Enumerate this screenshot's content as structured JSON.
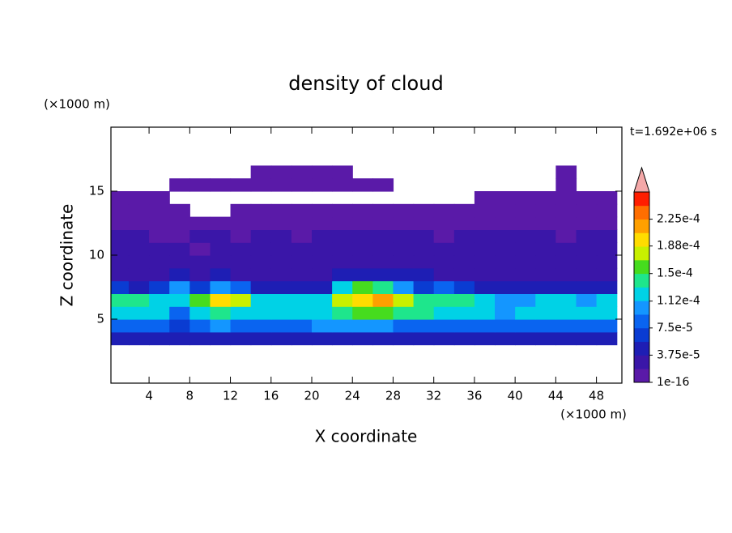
{
  "chart_data": {
    "type": "contour",
    "title": "density of cloud",
    "x_label": "X coordinate",
    "y_label": "Z coordinate",
    "x_unit": "(×1000 m)",
    "y_unit": "(×1000 m)",
    "annotation": "t=1.692e+06 s",
    "xlim": [
      0.25,
      50.5
    ],
    "ylim": [
      0,
      20
    ],
    "xticks": [
      4,
      8,
      12,
      16,
      20,
      24,
      28,
      32,
      36,
      40,
      44,
      48
    ],
    "yticks": [
      5,
      10,
      15
    ],
    "x": [
      1,
      3,
      5,
      7,
      9,
      11,
      13,
      15,
      17,
      19,
      21,
      23,
      25,
      27,
      29,
      31,
      33,
      35,
      37,
      39,
      41,
      43,
      45,
      47,
      49
    ],
    "y": [
      3.5,
      4.5,
      5.5,
      6.5,
      7.5,
      8.5,
      9.5,
      10.5,
      11.5,
      12.5,
      13.5,
      14.5,
      15.5,
      16.5
    ],
    "values": [
      [
        4e-05,
        4e-05,
        4e-05,
        4e-05,
        4e-05,
        4e-05,
        4e-05,
        4e-05,
        4e-05,
        4e-05,
        4e-05,
        4e-05,
        4e-05,
        4e-05,
        4e-05,
        4e-05,
        4e-05,
        4e-05,
        4e-05,
        4e-05,
        4e-05,
        4e-05,
        4e-05,
        4e-05,
        4e-05
      ],
      [
        9e-05,
        9e-05,
        8e-05,
        7e-05,
        9e-05,
        0.0001,
        9e-05,
        9e-05,
        9e-05,
        9e-05,
        0.0001,
        0.0001,
        0.0001,
        0.0001,
        9e-05,
        9e-05,
        9e-05,
        9e-05,
        9e-05,
        8e-05,
        9e-05,
        9e-05,
        9e-05,
        8e-05,
        9e-05
      ],
      [
        0.00013,
        0.00013,
        0.00012,
        8e-05,
        0.00013,
        0.00014,
        0.00013,
        0.00012,
        0.00012,
        0.00013,
        0.00013,
        0.00015,
        0.00016,
        0.00016,
        0.00015,
        0.00014,
        0.00013,
        0.00013,
        0.00012,
        0.00011,
        0.00012,
        0.00013,
        0.00012,
        0.00012,
        0.00013
      ],
      [
        0.00014,
        0.00015,
        0.00013,
        0.00012,
        0.00016,
        0.00019,
        0.00017,
        0.00013,
        0.00013,
        0.00013,
        0.00013,
        0.00018,
        0.0002,
        0.00021,
        0.00018,
        0.00015,
        0.00014,
        0.00015,
        0.00013,
        0.0001,
        0.00011,
        0.00013,
        0.00012,
        0.00011,
        0.00013
      ],
      [
        6e-05,
        5e-05,
        6e-05,
        0.00011,
        6e-05,
        0.00011,
        8e-05,
        5e-05,
        4e-05,
        5e-05,
        5e-05,
        0.00013,
        0.00016,
        0.00015,
        0.00011,
        7e-05,
        8e-05,
        7e-05,
        5e-05,
        4e-05,
        5e-05,
        5e-05,
        4e-05,
        4e-05,
        5e-05
      ],
      [
        3e-05,
        3e-05,
        3e-05,
        4e-05,
        3e-05,
        4e-05,
        3e-05,
        3e-05,
        3e-05,
        3e-05,
        3e-05,
        4e-05,
        5e-05,
        5e-05,
        4e-05,
        4e-05,
        3e-05,
        3e-05,
        3e-05,
        3e-05,
        3e-05,
        3e-05,
        3e-05,
        3e-05,
        3e-05
      ],
      [
        3e-05,
        2e-05,
        3e-05,
        3e-05,
        3e-05,
        3e-05,
        2e-05,
        3e-05,
        3e-05,
        2e-05,
        3e-05,
        3e-05,
        3e-05,
        3e-05,
        3e-05,
        3e-05,
        2e-05,
        3e-05,
        3e-05,
        3e-05,
        2e-05,
        3e-05,
        3e-05,
        3e-05,
        2e-05
      ],
      [
        2e-05,
        2e-05,
        2e-05,
        2e-05,
        1.5e-05,
        2e-05,
        2e-05,
        2e-05,
        2e-05,
        2e-05,
        2e-05,
        2e-05,
        2e-05,
        2e-05,
        2e-05,
        2e-05,
        2e-05,
        2e-05,
        2e-05,
        2e-05,
        2e-05,
        2e-05,
        2e-05,
        2e-05,
        2e-05
      ],
      [
        1.9e-05,
        1.9e-05,
        1.5e-05,
        1e-05,
        1.9e-05,
        1.9e-05,
        1e-05,
        1.9e-05,
        1.9e-05,
        1.5e-05,
        1.9e-05,
        1.9e-05,
        1.9e-05,
        1.9e-05,
        1.9e-05,
        1.9e-05,
        1.5e-05,
        1.9e-05,
        1.9e-05,
        1.9e-05,
        1.9e-05,
        1.9e-05,
        1.5e-05,
        1.9e-05,
        1.9e-05
      ],
      [
        1e-05,
        1e-05,
        1e-05,
        1e-05,
        1e-05,
        1e-05,
        1e-05,
        1e-05,
        1e-05,
        1e-05,
        1e-05,
        1e-05,
        1e-05,
        1e-05,
        1e-05,
        1e-05,
        1e-05,
        1e-05,
        1e-05,
        1e-05,
        1e-05,
        1e-05,
        1e-05,
        1e-05,
        1e-05
      ],
      [
        5e-06,
        5e-06,
        5e-06,
        5e-06,
        null,
        null,
        5e-06,
        5e-06,
        5e-06,
        5e-06,
        5e-06,
        5e-06,
        5e-06,
        5e-06,
        5e-06,
        5e-06,
        5e-06,
        5e-06,
        5e-06,
        5e-06,
        5e-06,
        5e-06,
        5e-06,
        5e-06,
        5e-06
      ],
      [
        3e-06,
        3e-06,
        3e-06,
        null,
        null,
        null,
        null,
        null,
        null,
        null,
        null,
        null,
        null,
        null,
        null,
        null,
        null,
        null,
        3e-06,
        3e-06,
        3e-06,
        3e-06,
        3e-06,
        3e-06,
        3e-06
      ],
      [
        null,
        null,
        null,
        3e-06,
        3e-06,
        3e-06,
        3e-06,
        3e-06,
        3e-06,
        3e-06,
        3e-06,
        3e-06,
        3e-06,
        3e-06,
        null,
        null,
        null,
        null,
        null,
        null,
        null,
        null,
        3e-06,
        null,
        null
      ],
      [
        null,
        null,
        null,
        null,
        null,
        null,
        null,
        3e-06,
        3e-06,
        3e-06,
        3e-06,
        3e-06,
        null,
        null,
        null,
        null,
        null,
        null,
        null,
        null,
        null,
        null,
        3e-06,
        null,
        null
      ]
    ],
    "colorbar": {
      "clim": [
        1e-16,
        0.0002625
      ],
      "ticks": [
        {
          "value": 1e-16,
          "label": "1e-16"
        },
        {
          "value": 3.75e-05,
          "label": "3.75e-5"
        },
        {
          "value": 7.5e-05,
          "label": "7.5e-5"
        },
        {
          "value": 0.000112,
          "label": "1.12e-4"
        },
        {
          "value": 0.00015,
          "label": "1.5e-4"
        },
        {
          "value": 0.000188,
          "label": "1.88e-4"
        },
        {
          "value": 0.000225,
          "label": "2.25e-4"
        }
      ],
      "colors": [
        "#5a1aa8",
        "#3a16a8",
        "#1e1eb4",
        "#0a3cd2",
        "#0a64f0",
        "#1496ff",
        "#00d2e6",
        "#1ee68c",
        "#46dc1e",
        "#c8f000",
        "#ffdc00",
        "#ffa000",
        "#ff6e00",
        "#ff1e00"
      ],
      "over_color": "#f4a8a8"
    }
  }
}
